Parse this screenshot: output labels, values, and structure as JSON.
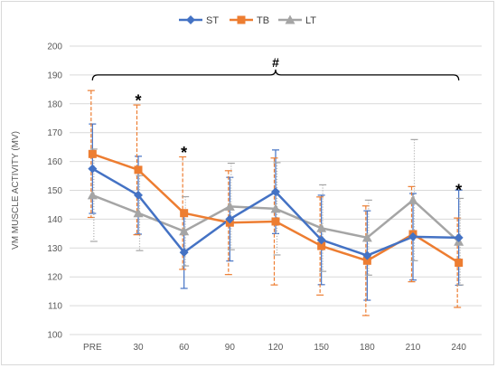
{
  "chart_data": {
    "type": "line",
    "title": "",
    "xlabel": "",
    "ylabel": "VM MUSCLE ACTIVITY (MV)",
    "ylim": [
      100,
      200
    ],
    "yticks": [
      100,
      110,
      120,
      130,
      140,
      150,
      160,
      170,
      180,
      190,
      200
    ],
    "categories": [
      "PRE",
      "30",
      "60",
      "90",
      "120",
      "150",
      "180",
      "210",
      "240"
    ],
    "grid": "horizontal",
    "legend_position": "top",
    "series": [
      {
        "name": "ST",
        "color": "#4472c4",
        "marker": "diamond",
        "error_style": "solid",
        "values": [
          157.5,
          148.3,
          128.5,
          140.0,
          149.5,
          132.8,
          127.4,
          133.9,
          133.6
        ],
        "error": [
          15.5,
          13.5,
          12.5,
          14.5,
          14.5,
          15.5,
          15.5,
          15.0,
          16.5
        ]
      },
      {
        "name": "TB",
        "color": "#ed7d31",
        "marker": "square",
        "error_style": "dashed",
        "values": [
          162.6,
          157.1,
          142.1,
          138.8,
          139.2,
          130.7,
          125.6,
          134.8,
          124.9
        ],
        "error": [
          22.0,
          22.5,
          19.5,
          18.0,
          22.0,
          17.0,
          19.0,
          16.5,
          15.5
        ]
      },
      {
        "name": "LT",
        "color": "#a5a5a5",
        "marker": "triangle",
        "error_style": "dotted",
        "values": [
          148.3,
          142.1,
          135.8,
          144.4,
          143.6,
          136.9,
          133.6,
          146.6,
          132.2
        ],
        "error": [
          16.0,
          13.0,
          12.0,
          15.0,
          16.0,
          15.0,
          13.0,
          21.0,
          15.0
        ]
      }
    ],
    "annotations": [
      {
        "text": "*",
        "category": "30",
        "y": 182
      },
      {
        "text": "*",
        "category": "60",
        "y": 164
      },
      {
        "text": "*",
        "category": "240",
        "y": 151
      },
      {
        "text": "#",
        "category_span": [
          "PRE",
          "240"
        ],
        "y": 190
      }
    ]
  }
}
